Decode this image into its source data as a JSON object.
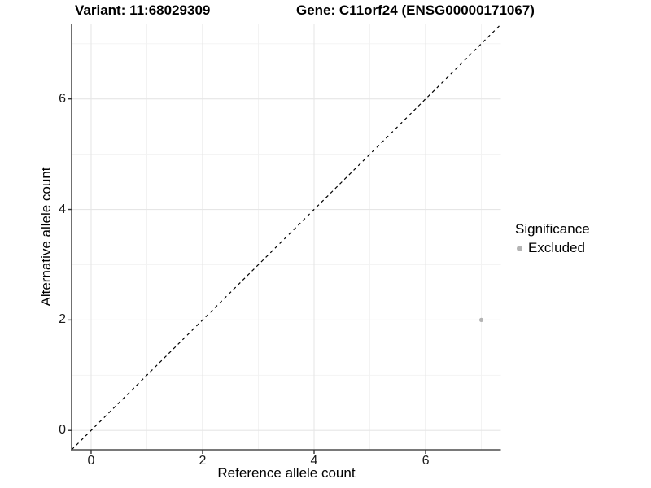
{
  "title": {
    "variant": "Variant: 11:68029309",
    "gene": "Gene: C11orf24 (ENSG00000171067)"
  },
  "axes": {
    "x_label": "Reference allele count",
    "y_label": "Alternative allele count",
    "x_tick_labels": [
      "0",
      "2",
      "4",
      "6"
    ],
    "y_tick_labels": [
      "0",
      "2",
      "4",
      "6"
    ]
  },
  "legend": {
    "title": "Significance",
    "items": [
      {
        "label": "Excluded",
        "color": "#b4b4b4"
      }
    ]
  },
  "colors": {
    "background": "#ffffff",
    "grid_major": "#e6e6e6",
    "grid_minor": "#f2f2f2",
    "axis_line": "#4d4d4d",
    "tick_mark": "#333333",
    "reference_line": "#000000",
    "point": "#b4b4b4",
    "text": "#000000"
  },
  "chart_data": {
    "type": "scatter",
    "title": "Variant: 11:68029309   Gene: C11orf24 (ENSG00000171067)",
    "xlabel": "Reference allele count",
    "ylabel": "Alternative allele count",
    "xlim": [
      -0.35,
      7.35
    ],
    "ylim": [
      -0.35,
      7.35
    ],
    "x_major_ticks": [
      0,
      2,
      4,
      6
    ],
    "y_major_ticks": [
      0,
      2,
      4,
      6
    ],
    "x_minor_ticks": [
      1,
      3,
      5,
      7
    ],
    "y_minor_ticks": [
      1,
      3,
      5,
      7
    ],
    "grid": "major+minor",
    "legend_position": "right",
    "legend_title": "Significance",
    "series": [
      {
        "name": "Excluded",
        "color": "#b4b4b4",
        "points": [
          {
            "x": 7,
            "y": 2
          }
        ]
      }
    ],
    "reference_line": {
      "equation": "y = x",
      "style": "dashed",
      "color": "#000000"
    }
  }
}
